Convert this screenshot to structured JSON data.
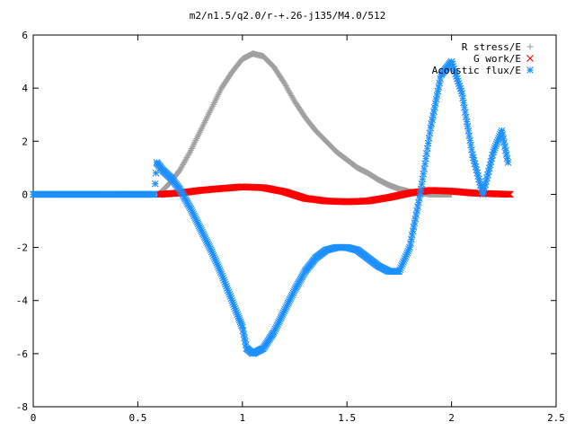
{
  "chart_data": {
    "type": "scatter",
    "title": "m2/n1.5/q2.0/r-+.26-j135/M4.0/512",
    "xlabel": "",
    "ylabel": "",
    "xlim": [
      0,
      2.5
    ],
    "ylim": [
      -8,
      6
    ],
    "xticks": [
      0,
      0.5,
      1,
      1.5,
      2,
      2.5
    ],
    "xtick_labels": [
      "0",
      "0.5",
      "1",
      "1.5",
      "2",
      "2.5"
    ],
    "yticks": [
      -8,
      -6,
      -4,
      -2,
      0,
      2,
      4,
      6
    ],
    "ytick_labels": [
      "-8",
      "-6",
      "-4",
      "-2",
      "0",
      "2",
      "4",
      "6"
    ],
    "grid": false,
    "legend_position": "top-right",
    "series": [
      {
        "name": "R stress/E",
        "marker": "plus",
        "color": "#a0a0a0",
        "points": [
          [
            0.6,
            0.0
          ],
          [
            0.65,
            0.4
          ],
          [
            0.7,
            0.9
          ],
          [
            0.75,
            1.6
          ],
          [
            0.8,
            2.4
          ],
          [
            0.85,
            3.2
          ],
          [
            0.9,
            4.0
          ],
          [
            0.95,
            4.6
          ],
          [
            1.0,
            5.1
          ],
          [
            1.05,
            5.3
          ],
          [
            1.1,
            5.2
          ],
          [
            1.15,
            4.8
          ],
          [
            1.2,
            4.2
          ],
          [
            1.25,
            3.5
          ],
          [
            1.3,
            2.9
          ],
          [
            1.35,
            2.4
          ],
          [
            1.4,
            2.0
          ],
          [
            1.45,
            1.6
          ],
          [
            1.5,
            1.3
          ],
          [
            1.55,
            1.0
          ],
          [
            1.6,
            0.8
          ],
          [
            1.65,
            0.55
          ],
          [
            1.7,
            0.35
          ],
          [
            1.75,
            0.2
          ],
          [
            1.8,
            0.1
          ],
          [
            1.85,
            0.05
          ],
          [
            1.9,
            0.0
          ],
          [
            1.95,
            0.0
          ],
          [
            2.0,
            0.0
          ]
        ]
      },
      {
        "name": "G work/E",
        "marker": "cross",
        "color": "#ff0000",
        "points": [
          [
            0.6,
            0.0
          ],
          [
            0.7,
            0.05
          ],
          [
            0.8,
            0.15
          ],
          [
            0.9,
            0.22
          ],
          [
            1.0,
            0.28
          ],
          [
            1.1,
            0.25
          ],
          [
            1.2,
            0.1
          ],
          [
            1.3,
            -0.15
          ],
          [
            1.4,
            -0.25
          ],
          [
            1.5,
            -0.28
          ],
          [
            1.6,
            -0.25
          ],
          [
            1.7,
            -0.12
          ],
          [
            1.8,
            0.05
          ],
          [
            1.9,
            0.15
          ],
          [
            2.0,
            0.12
          ],
          [
            2.1,
            0.05
          ],
          [
            2.2,
            0.02
          ],
          [
            2.28,
            0.0
          ]
        ]
      },
      {
        "name": "Acoustic flux/E",
        "marker": "star",
        "color": "#1e90ff",
        "points": [
          [
            0.0,
            0.0
          ],
          [
            0.1,
            0.0
          ],
          [
            0.2,
            0.0
          ],
          [
            0.3,
            0.0
          ],
          [
            0.4,
            0.0
          ],
          [
            0.5,
            0.0
          ],
          [
            0.58,
            0.0
          ],
          [
            0.59,
            1.2
          ],
          [
            0.62,
            0.9
          ],
          [
            0.66,
            0.6
          ],
          [
            0.7,
            0.2
          ],
          [
            0.75,
            -0.5
          ],
          [
            0.8,
            -1.3
          ],
          [
            0.85,
            -2.1
          ],
          [
            0.9,
            -3.0
          ],
          [
            0.95,
            -4.0
          ],
          [
            0.98,
            -4.6
          ],
          [
            1.0,
            -5.0
          ],
          [
            1.02,
            -5.8
          ],
          [
            1.05,
            -6.0
          ],
          [
            1.1,
            -5.8
          ],
          [
            1.15,
            -5.2
          ],
          [
            1.2,
            -4.4
          ],
          [
            1.25,
            -3.6
          ],
          [
            1.3,
            -2.9
          ],
          [
            1.35,
            -2.4
          ],
          [
            1.4,
            -2.1
          ],
          [
            1.45,
            -2.0
          ],
          [
            1.5,
            -2.0
          ],
          [
            1.55,
            -2.1
          ],
          [
            1.6,
            -2.4
          ],
          [
            1.65,
            -2.7
          ],
          [
            1.7,
            -2.9
          ],
          [
            1.75,
            -2.9
          ],
          [
            1.8,
            -2.0
          ],
          [
            1.85,
            0.0
          ],
          [
            1.9,
            2.5
          ],
          [
            1.95,
            4.5
          ],
          [
            2.0,
            5.0
          ],
          [
            2.05,
            3.8
          ],
          [
            2.1,
            1.5
          ],
          [
            2.15,
            0.0
          ],
          [
            2.2,
            1.6
          ],
          [
            2.24,
            2.4
          ],
          [
            2.27,
            1.2
          ]
        ]
      }
    ]
  }
}
